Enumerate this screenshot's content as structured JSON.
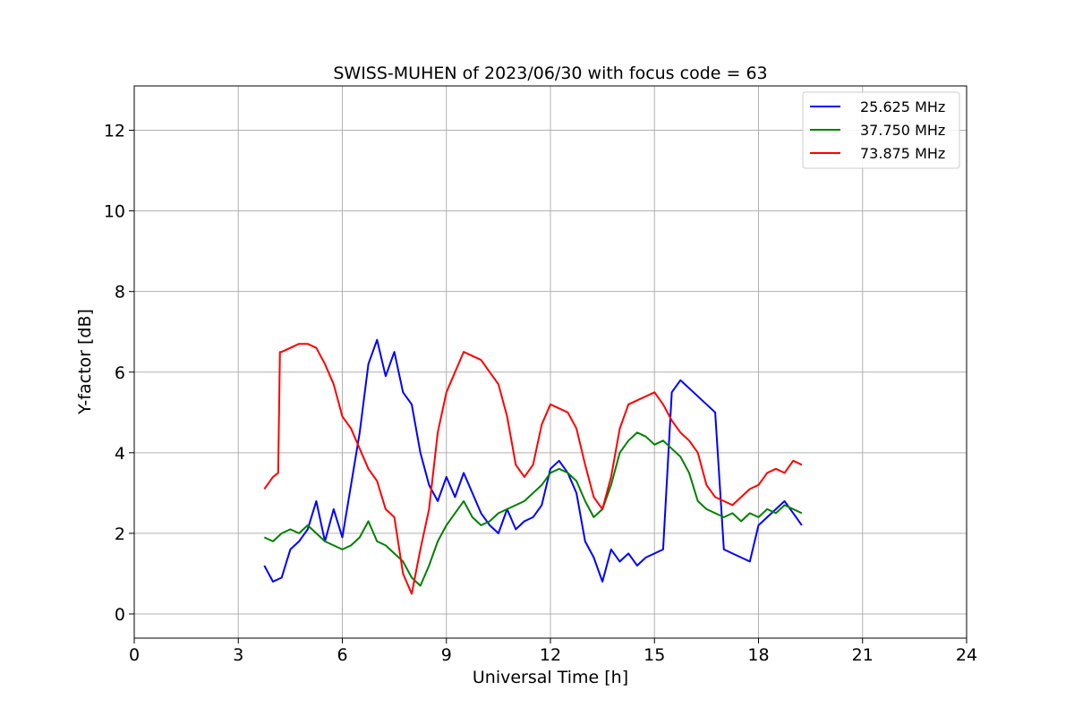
{
  "chart_data": {
    "type": "line",
    "title": "SWISS-MUHEN of 2023/06/30 with focus code = 63",
    "xlabel": "Universal Time [h]",
    "ylabel": "Y-factor [dB]",
    "xlim": [
      0,
      24
    ],
    "ylim": [
      -0.6,
      13.1
    ],
    "xticks": [
      0,
      3,
      6,
      9,
      12,
      15,
      18,
      21,
      24
    ],
    "yticks": [
      0,
      2,
      4,
      6,
      8,
      10,
      12
    ],
    "xtick_labels": [
      "0",
      "3",
      "6",
      "9",
      "12",
      "15",
      "18",
      "21",
      "24"
    ],
    "ytick_labels": [
      "0",
      "2",
      "4",
      "6",
      "8",
      "10",
      "12"
    ],
    "grid": true,
    "legend_position": "top-right",
    "series": [
      {
        "name": "25.625 MHz",
        "color": "#0000ff",
        "x": [
          3.75,
          4.0,
          4.25,
          4.5,
          4.75,
          5.0,
          5.25,
          5.5,
          5.75,
          6.0,
          6.25,
          6.5,
          6.75,
          7.0,
          7.25,
          7.5,
          7.75,
          8.0,
          8.25,
          8.5,
          8.75,
          9.0,
          9.25,
          9.5,
          9.75,
          10.0,
          10.25,
          10.5,
          10.75,
          11.0,
          11.25,
          11.5,
          11.75,
          12.0,
          12.25,
          12.5,
          12.75,
          13.0,
          13.25,
          13.5,
          13.75,
          14.0,
          14.25,
          14.5,
          14.75,
          15.0,
          15.25,
          15.5,
          15.75,
          16.0,
          16.25,
          16.5,
          16.75,
          17.0,
          17.25,
          17.5,
          17.75,
          18.0,
          18.25,
          18.5,
          18.75,
          19.0,
          19.25
        ],
        "y": [
          1.2,
          0.8,
          0.9,
          1.6,
          1.8,
          2.1,
          2.8,
          1.8,
          2.6,
          1.9,
          3.2,
          4.5,
          6.2,
          6.8,
          5.9,
          6.5,
          5.5,
          5.2,
          4.0,
          3.2,
          2.8,
          3.4,
          2.9,
          3.5,
          3.0,
          2.5,
          2.2,
          2.0,
          2.6,
          2.1,
          2.3,
          2.4,
          2.7,
          3.6,
          3.8,
          3.5,
          3.0,
          1.8,
          1.4,
          0.8,
          1.6,
          1.3,
          1.5,
          1.2,
          1.4,
          1.5,
          1.6,
          5.5,
          5.8,
          5.6,
          5.4,
          5.2,
          5.0,
          1.6,
          1.5,
          1.4,
          1.3,
          2.2,
          2.4,
          2.6,
          2.8,
          2.5,
          2.2
        ]
      },
      {
        "name": "37.750 MHz",
        "color": "#008000",
        "x": [
          3.75,
          4.0,
          4.25,
          4.5,
          4.75,
          5.0,
          5.25,
          5.5,
          5.75,
          6.0,
          6.25,
          6.5,
          6.75,
          7.0,
          7.25,
          7.5,
          7.75,
          8.0,
          8.25,
          8.5,
          8.75,
          9.0,
          9.25,
          9.5,
          9.75,
          10.0,
          10.25,
          10.5,
          10.75,
          11.0,
          11.25,
          11.5,
          11.75,
          12.0,
          12.25,
          12.5,
          12.75,
          13.0,
          13.25,
          13.5,
          13.75,
          14.0,
          14.25,
          14.5,
          14.75,
          15.0,
          15.25,
          15.5,
          15.75,
          16.0,
          16.25,
          16.5,
          16.75,
          17.0,
          17.25,
          17.5,
          17.75,
          18.0,
          18.25,
          18.5,
          18.75,
          19.0,
          19.25
        ],
        "y": [
          1.9,
          1.8,
          2.0,
          2.1,
          2.0,
          2.2,
          2.0,
          1.8,
          1.7,
          1.6,
          1.7,
          1.9,
          2.3,
          1.8,
          1.7,
          1.5,
          1.3,
          0.9,
          0.7,
          1.2,
          1.8,
          2.2,
          2.5,
          2.8,
          2.4,
          2.2,
          2.3,
          2.5,
          2.6,
          2.7,
          2.8,
          3.0,
          3.2,
          3.5,
          3.6,
          3.5,
          3.3,
          2.8,
          2.4,
          2.6,
          3.2,
          4.0,
          4.3,
          4.5,
          4.4,
          4.2,
          4.3,
          4.1,
          3.9,
          3.5,
          2.8,
          2.6,
          2.5,
          2.4,
          2.5,
          2.3,
          2.5,
          2.4,
          2.6,
          2.5,
          2.7,
          2.6,
          2.5
        ]
      },
      {
        "name": "73.875 MHz",
        "color": "#ff0000",
        "x": [
          3.75,
          4.0,
          4.15,
          4.2,
          4.25,
          4.5,
          4.75,
          5.0,
          5.25,
          5.5,
          5.75,
          6.0,
          6.25,
          6.5,
          6.75,
          7.0,
          7.25,
          7.5,
          7.75,
          8.0,
          8.25,
          8.5,
          8.75,
          9.0,
          9.25,
          9.5,
          9.75,
          10.0,
          10.25,
          10.5,
          10.75,
          11.0,
          11.25,
          11.5,
          11.75,
          12.0,
          12.25,
          12.5,
          12.75,
          13.0,
          13.25,
          13.5,
          13.75,
          14.0,
          14.25,
          14.5,
          14.75,
          15.0,
          15.25,
          15.5,
          15.75,
          16.0,
          16.25,
          16.5,
          16.75,
          17.0,
          17.25,
          17.5,
          17.75,
          18.0,
          18.25,
          18.5,
          18.75,
          19.0,
          19.25
        ],
        "y": [
          3.1,
          3.4,
          3.5,
          6.5,
          6.5,
          6.6,
          6.7,
          6.7,
          6.6,
          6.2,
          5.7,
          4.9,
          4.6,
          4.1,
          3.6,
          3.3,
          2.6,
          2.4,
          1.0,
          0.5,
          1.6,
          2.6,
          4.5,
          5.5,
          6.0,
          6.5,
          6.4,
          6.3,
          6.0,
          5.7,
          4.9,
          3.7,
          3.4,
          3.7,
          4.7,
          5.2,
          5.1,
          5.0,
          4.6,
          3.7,
          2.9,
          2.6,
          3.4,
          4.6,
          5.2,
          5.3,
          5.4,
          5.5,
          5.2,
          4.8,
          4.5,
          4.3,
          4.0,
          3.2,
          2.9,
          2.8,
          2.7,
          2.9,
          3.1,
          3.2,
          3.5,
          3.6,
          3.5,
          3.8,
          3.7
        ]
      }
    ]
  }
}
